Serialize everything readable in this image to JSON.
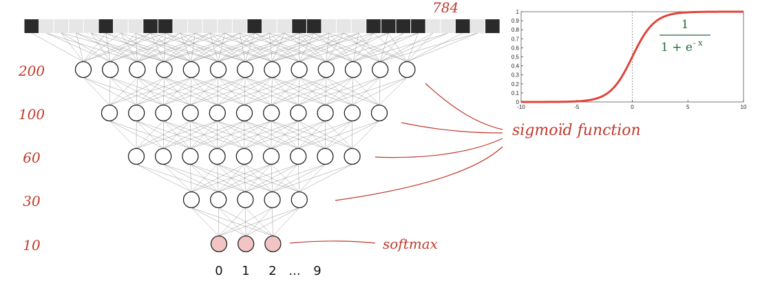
{
  "network": {
    "input_label": "784",
    "input_pixels": [
      1,
      0,
      0,
      0,
      0,
      1,
      0,
      0,
      1,
      1,
      0,
      0,
      0,
      0,
      0,
      1,
      0,
      0,
      1,
      1,
      0,
      0,
      0,
      1,
      1,
      1,
      1,
      0,
      0,
      1,
      0,
      1
    ],
    "layers": [
      {
        "label": "200",
        "count": 13,
        "kind": "hidden"
      },
      {
        "label": "100",
        "count": 11,
        "kind": "hidden"
      },
      {
        "label": "60",
        "count": 9,
        "kind": "hidden"
      },
      {
        "label": "30",
        "count": 5,
        "kind": "hidden"
      },
      {
        "label": "10",
        "count": 3,
        "kind": "output"
      }
    ],
    "output_digits": [
      "0",
      "1",
      "2",
      "...",
      "9"
    ]
  },
  "annotations": {
    "sigmoid": "sigmoïd function",
    "softmax": "softmax"
  },
  "chart_data": {
    "type": "line",
    "title": "",
    "xlabel": "",
    "ylabel": "",
    "xlim": [
      -10,
      10
    ],
    "ylim": [
      0,
      1
    ],
    "x_ticks": [
      "-10",
      "-5",
      "0",
      "5",
      "10"
    ],
    "y_ticks": [
      "0",
      "0.1",
      "0.2",
      "0.3",
      "0.4",
      "0.5",
      "0.6",
      "0.7",
      "0.8",
      "0.9",
      "1"
    ],
    "function": "sigmoid",
    "x": [
      -10,
      -8,
      -6,
      -5,
      -4,
      -3,
      -2,
      -1,
      0,
      1,
      2,
      3,
      4,
      5,
      6,
      8,
      10
    ],
    "y": [
      5e-05,
      0.0003,
      0.0025,
      0.0067,
      0.018,
      0.047,
      0.119,
      0.269,
      0.5,
      0.731,
      0.881,
      0.953,
      0.982,
      0.993,
      0.9975,
      0.9997,
      0.99995
    ],
    "formula_numerator": "1",
    "formula_denominator": "1 + e",
    "formula_exponent": "- x",
    "colors": {
      "curve": "#e0433a",
      "formula": "#1e6b3a",
      "frame": "#777777"
    },
    "grid": false
  },
  "colors": {
    "annotation": "#c0392b",
    "node_fill": "#ffffff",
    "output_fill": "#f2c4c4",
    "pixel_dark": "#2a2a2a",
    "pixel_light": "#e6e6e6"
  }
}
